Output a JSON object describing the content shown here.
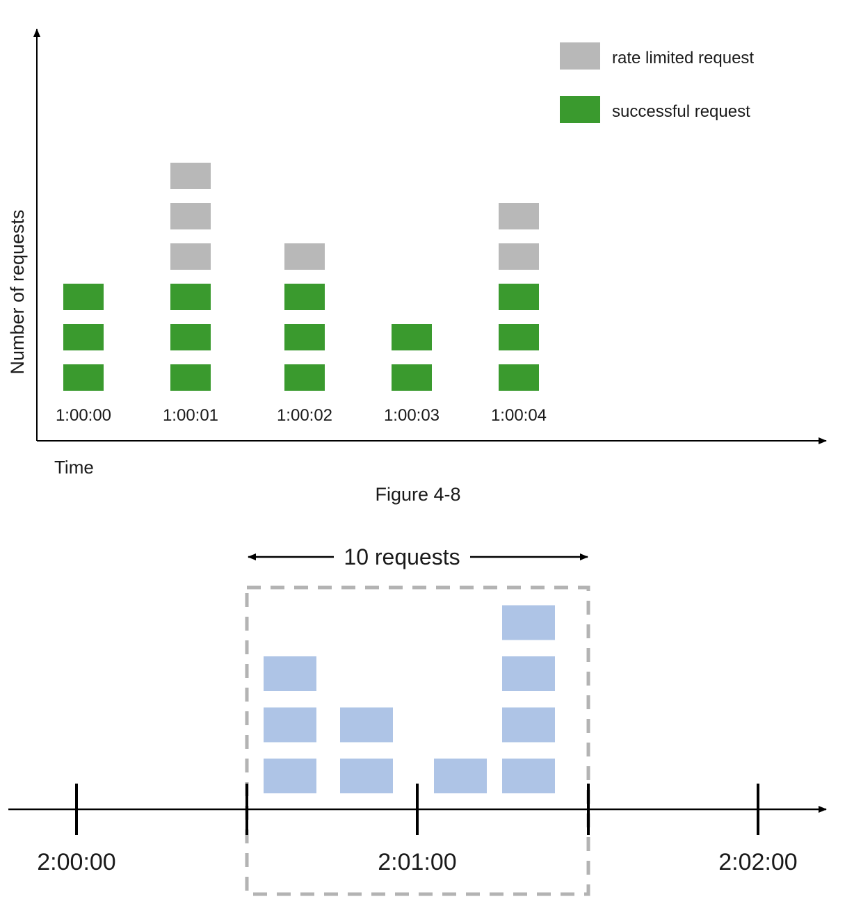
{
  "figure1": {
    "ylabel": "Number of requests",
    "xlabel": "Time",
    "caption": "Figure 4-8",
    "legend": [
      {
        "label": "rate limited request",
        "color": "#b8b8b8"
      },
      {
        "label": "successful request",
        "color": "#3a9a2e"
      }
    ],
    "columns": [
      {
        "time": "1:00:00",
        "successful": 3,
        "rate_limited": 0
      },
      {
        "time": "1:00:01",
        "successful": 3,
        "rate_limited": 3
      },
      {
        "time": "1:00:02",
        "successful": 3,
        "rate_limited": 1
      },
      {
        "time": "1:00:03",
        "successful": 2,
        "rate_limited": 0
      },
      {
        "time": "1:00:04",
        "successful": 3,
        "rate_limited": 2
      }
    ]
  },
  "figure2": {
    "window_label": "10 requests",
    "request_color": "#aec4e6",
    "ticks": [
      "2:00:00",
      "",
      "2:01:00",
      "",
      "2:02:00"
    ],
    "request_groups": [
      3,
      2,
      1,
      4
    ]
  }
}
